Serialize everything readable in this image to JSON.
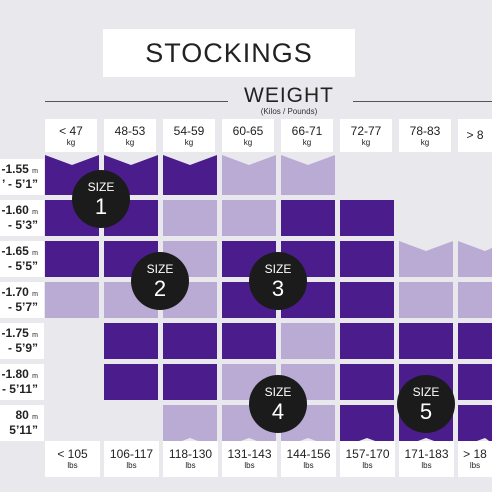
{
  "title": "STOCKINGS",
  "weight_header": {
    "label": "WEIGHT",
    "sub": "(Kilos / Pounds)"
  },
  "weight_kg": [
    {
      "v": "< 47",
      "u": "kg"
    },
    {
      "v": "48-53",
      "u": "kg"
    },
    {
      "v": "54-59",
      "u": "kg"
    },
    {
      "v": "60-65",
      "u": "kg"
    },
    {
      "v": "66-71",
      "u": "kg"
    },
    {
      "v": "72-77",
      "u": "kg"
    },
    {
      "v": "78-83",
      "u": "kg"
    },
    {
      "v": "> 8",
      "u": ""
    }
  ],
  "height_rows": [
    {
      "m": "-1.55",
      "mu": "m",
      "ft": "’ - 5’1”"
    },
    {
      "m": "-1.60",
      "mu": "m",
      "ft": "- 5’3”"
    },
    {
      "m": "-1.65",
      "mu": "m",
      "ft": "- 5’5”"
    },
    {
      "m": "-1.70",
      "mu": "m",
      "ft": "- 5’7”"
    },
    {
      "m": "-1.75",
      "mu": "m",
      "ft": "- 5’9”"
    },
    {
      "m": "-1.80",
      "mu": "m",
      "ft": "- 5’11”"
    },
    {
      "m": "80",
      "mu": "m",
      "ft": "5’11”"
    }
  ],
  "weight_lbs": [
    {
      "v": "< 105",
      "u": "lbs"
    },
    {
      "v": "106-117",
      "u": "lbs"
    },
    {
      "v": "118-130",
      "u": "lbs"
    },
    {
      "v": "131-143",
      "u": "lbs"
    },
    {
      "v": "144-156",
      "u": "lbs"
    },
    {
      "v": "157-170",
      "u": "lbs"
    },
    {
      "v": "171-183",
      "u": "lbs"
    },
    {
      "v": "> 18",
      "u": "lbs"
    }
  ],
  "sizes": [
    {
      "label": "SIZE",
      "num": "1"
    },
    {
      "label": "SIZE",
      "num": "2"
    },
    {
      "label": "SIZE",
      "num": "3"
    },
    {
      "label": "SIZE",
      "num": "4"
    },
    {
      "label": "SIZE",
      "num": "5"
    }
  ],
  "colors": {
    "dark": "#4b1d8c",
    "light": "#b9abd3",
    "background": "#e9e8ec",
    "badge": "#1b1b1b"
  }
}
